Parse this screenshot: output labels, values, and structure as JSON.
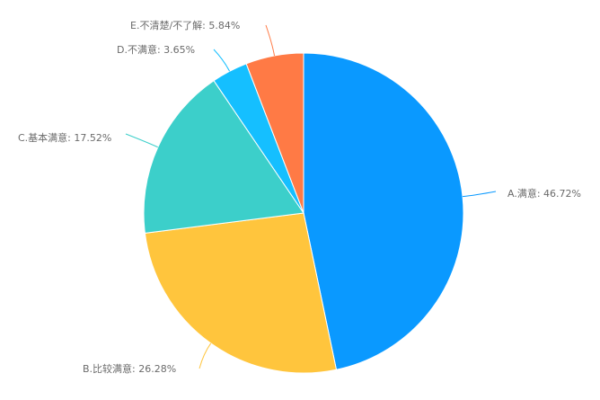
{
  "chart_data": {
    "type": "pie",
    "start": "top",
    "direction": "clockwise",
    "slices": [
      {
        "name": "A.满意",
        "value": 46.72,
        "label": "A.满意: 46.72%",
        "color": "#0A99FF"
      },
      {
        "name": "B.比较满意",
        "value": 26.28,
        "label": "B.比较满意: 26.28%",
        "color": "#FFC53D"
      },
      {
        "name": "C.基本满意",
        "value": 17.52,
        "label": "C.基本满意: 17.52%",
        "color": "#3CCFCA"
      },
      {
        "name": "D.不满意",
        "value": 3.65,
        "label": "D.不满意: 3.65%",
        "color": "#15BFFF"
      },
      {
        "name": "E.不清楚/不了解",
        "value": 5.84,
        "label": "E.不清楚/不了解: 5.84%",
        "color": "#FF7A45"
      }
    ]
  }
}
